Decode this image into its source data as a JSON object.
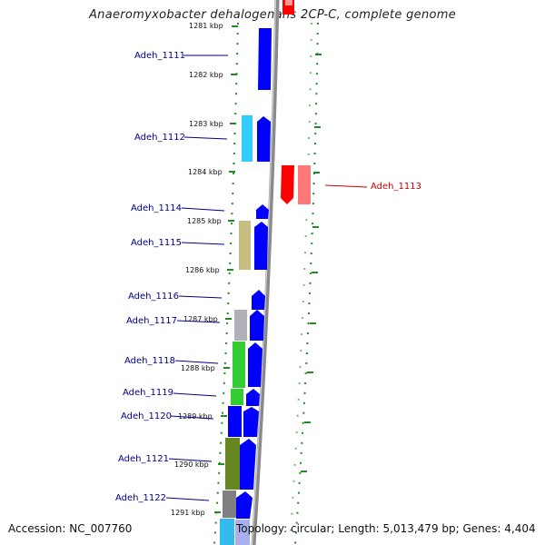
{
  "title": "Anaeromyxobacter dehalogenans 2CP-C, complete genome",
  "accession": "Accession: NC_007760",
  "topology": "Topology: circular; Length: 5,013,479 bp; Genes: 4,404",
  "ticks": [
    "1281 kbp",
    "1282 kbp",
    "1283 kbp",
    "1284 kbp",
    "1285 kbp",
    "1286 kbp",
    "1287 kbp",
    "1288 kbp",
    "1289 kbp",
    "1290 kbp",
    "1291 kbp"
  ],
  "genes": [
    {
      "name": "Adeh_1111",
      "strand": "forward",
      "color": "#0000ff"
    },
    {
      "name": "Adeh_1112",
      "strand": "forward",
      "color": "#0000ff"
    },
    {
      "name": "Adeh_1113",
      "strand": "reverse",
      "color": "#ff0000"
    },
    {
      "name": "Adeh_1114",
      "strand": "forward",
      "color": "#0000ff"
    },
    {
      "name": "Adeh_1115",
      "strand": "forward",
      "color": "#0000ff"
    },
    {
      "name": "Adeh_1116",
      "strand": "forward",
      "color": "#0000ff"
    },
    {
      "name": "Adeh_1117",
      "strand": "forward",
      "color": "#0000ff"
    },
    {
      "name": "Adeh_1118",
      "strand": "forward",
      "color": "#0000ff"
    },
    {
      "name": "Adeh_1119",
      "strand": "forward",
      "color": "#0000ff"
    },
    {
      "name": "Adeh_1120",
      "strand": "forward",
      "color": "#0000ff"
    },
    {
      "name": "Adeh_1121",
      "strand": "forward",
      "color": "#0000ff"
    },
    {
      "name": "Adeh_1122",
      "strand": "forward",
      "color": "#0000ff"
    }
  ],
  "cog_colors": [
    "#0000ff",
    "#33ccff",
    "#ff0000",
    "#ff7777",
    "#c8be82",
    "#b0b0b8",
    "#33cc33",
    "#668822",
    "#808080"
  ]
}
